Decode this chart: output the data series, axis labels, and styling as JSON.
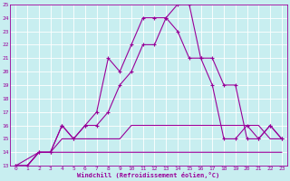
{
  "xlabel": "Windchill (Refroidissement éolien,°C)",
  "bg_color": "#c8eef0",
  "line_color": "#990099",
  "grid_color": "#ffffff",
  "xlim": [
    -0.5,
    23.5
  ],
  "ylim": [
    13,
    25
  ],
  "xticks": [
    0,
    1,
    2,
    3,
    4,
    5,
    6,
    7,
    8,
    9,
    10,
    11,
    12,
    13,
    14,
    15,
    16,
    17,
    18,
    19,
    20,
    21,
    22,
    23
  ],
  "yticks": [
    13,
    14,
    15,
    16,
    17,
    18,
    19,
    20,
    21,
    22,
    23,
    24,
    25
  ],
  "series": [
    {
      "x": [
        0,
        1,
        2,
        3,
        4,
        5,
        6,
        7,
        8,
        9,
        10,
        11,
        12,
        13,
        14,
        15,
        16,
        17,
        18,
        19,
        20,
        21,
        22,
        23
      ],
      "y": [
        13,
        13,
        14,
        14,
        14,
        14,
        14,
        14,
        14,
        14,
        14,
        14,
        14,
        14,
        14,
        14,
        14,
        14,
        14,
        14,
        14,
        14,
        14,
        14
      ],
      "marker": null,
      "lw": 0.8
    },
    {
      "x": [
        0,
        1,
        2,
        3,
        4,
        5,
        6,
        7,
        8,
        9,
        10,
        11,
        12,
        13,
        14,
        15,
        16,
        17,
        18,
        19,
        20,
        21,
        22,
        23
      ],
      "y": [
        13,
        13,
        14,
        14,
        15,
        15,
        15,
        15,
        15,
        15,
        16,
        16,
        16,
        16,
        16,
        16,
        16,
        16,
        16,
        16,
        16,
        16,
        15,
        15
      ],
      "marker": null,
      "lw": 0.8
    },
    {
      "x": [
        0,
        1,
        2,
        3,
        4,
        5,
        6,
        7,
        8,
        9,
        10,
        11,
        12,
        13,
        14,
        15,
        16,
        17,
        18,
        19,
        20,
        21,
        22,
        23
      ],
      "y": [
        13,
        13,
        14,
        14,
        16,
        15,
        16,
        16,
        17,
        19,
        20,
        22,
        22,
        24,
        25,
        25,
        21,
        21,
        19,
        19,
        15,
        15,
        16,
        15
      ],
      "marker": "P",
      "markersize": 2.5,
      "lw": 0.8
    },
    {
      "x": [
        0,
        2,
        3,
        4,
        5,
        6,
        7,
        8,
        9,
        10,
        11,
        12,
        13,
        14,
        15,
        16,
        17,
        18,
        19,
        20,
        21,
        22,
        23
      ],
      "y": [
        13,
        14,
        14,
        16,
        15,
        16,
        17,
        21,
        20,
        22,
        24,
        24,
        24,
        23,
        21,
        21,
        19,
        15,
        15,
        16,
        15,
        16,
        15
      ],
      "marker": "P",
      "markersize": 2.5,
      "lw": 0.8
    }
  ]
}
